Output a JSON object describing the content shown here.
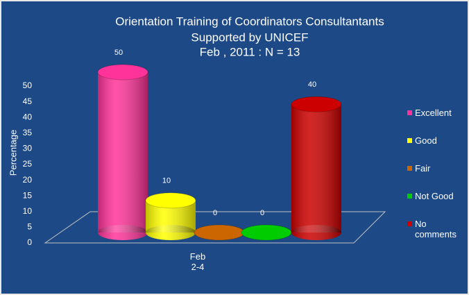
{
  "chart_data": {
    "type": "bar3d",
    "title": [
      "Orientation Training of Coordinators Consultantants",
      "Supported by UNICEF",
      "Feb , 2011 : N = 13"
    ],
    "y_label": "Percentage",
    "categories": [
      "Feb\n2-4"
    ],
    "series": [
      {
        "name": "Excellent",
        "color": "#ff3399",
        "values": [
          50
        ]
      },
      {
        "name": "Good",
        "color": "#ffff00",
        "values": [
          10
        ]
      },
      {
        "name": "Fair",
        "color": "#cc6600",
        "values": [
          0
        ]
      },
      {
        "name": "Not Good",
        "color": "#00cc00",
        "values": [
          0
        ]
      },
      {
        "name": "No comments",
        "color": "#cc0000",
        "values": [
          40
        ]
      }
    ],
    "ylim": [
      0,
      50
    ],
    "yticks": [
      0,
      5,
      10,
      15,
      20,
      25,
      30,
      35,
      40,
      45,
      50
    ]
  }
}
